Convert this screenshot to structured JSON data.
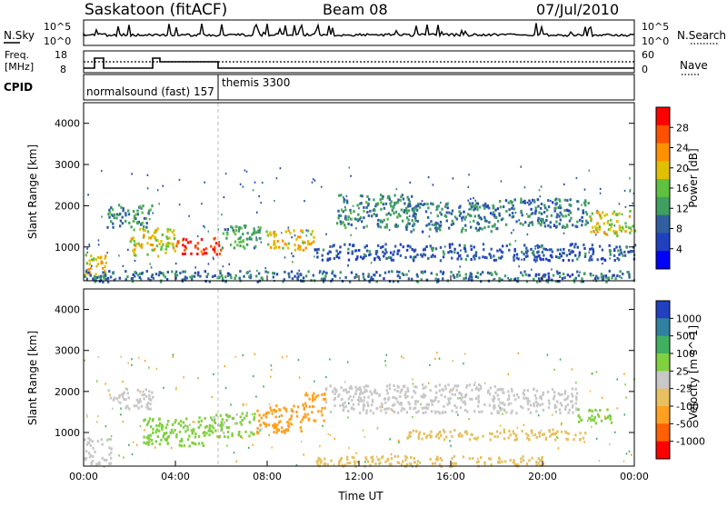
{
  "header": {
    "station": "Saskatoon (fitACF)",
    "beam": "Beam 08",
    "date": "07/Jul/2010"
  },
  "side_labels": {
    "nsky": "N.Sky",
    "nsearch": "N.Search",
    "freq_line1": "Freq.",
    "freq_line2": "[MHz]",
    "nave": "Nave",
    "cpid": "CPID"
  },
  "noise_axis": {
    "left_top": "10^5",
    "left_bottom": "10^0",
    "right_top": "10^5",
    "right_bottom": "10^0"
  },
  "freq_axis": {
    "left_top": "18",
    "left_bottom": "8",
    "right_top": "60",
    "right_bottom": "0"
  },
  "cpid": {
    "mode1": "normalsound (fast) 157",
    "mode2": "themis 3300"
  },
  "colorbars": {
    "power": {
      "label": "Power [dB]",
      "ticks": [
        "28",
        "24",
        "20",
        "16",
        "12",
        "8",
        "4"
      ],
      "colors": [
        "#0000ff",
        "#2040c0",
        "#3060a0",
        "#40a060",
        "#60c040",
        "#e0c000",
        "#ff9000",
        "#ff5000",
        "#ff0000"
      ]
    },
    "velocity": {
      "label": "Velocity [m s^-1]",
      "ticks": [
        "1000",
        "500",
        "100",
        "25",
        "-25",
        "-100",
        "-500",
        "-1000"
      ],
      "colors": [
        "#2040c0",
        "#3080a0",
        "#40b060",
        "#80d040",
        "#c8c8c8",
        "#e8c060",
        "#ffa020",
        "#ff6000",
        "#ff0000"
      ]
    }
  },
  "chart_data": [
    {
      "type": "heatmap",
      "title": "Power",
      "ylabel": "Slant Range [km]",
      "xlabel": "Time UT",
      "x_ticks": [
        "00:00",
        "04:00",
        "08:00",
        "12:00",
        "16:00",
        "20:00",
        "00:00"
      ],
      "y_ticks": [
        1000,
        2000,
        3000,
        4000
      ],
      "ylim": [
        180,
        4500
      ],
      "xlim_hours": [
        0,
        24
      ],
      "regions": [
        {
          "t0": 0.0,
          "t1": 1.0,
          "r0": 350,
          "r1": 900,
          "value": 20
        },
        {
          "t0": 1.0,
          "t1": 3.0,
          "r0": 1500,
          "r1": 2050,
          "value": 10
        },
        {
          "t0": 2.0,
          "t1": 4.0,
          "r0": 800,
          "r1": 1500,
          "value": 18
        },
        {
          "t0": 4.0,
          "t1": 6.0,
          "r0": 850,
          "r1": 1250,
          "value": 28
        },
        {
          "t0": 6.0,
          "t1": 8.0,
          "r0": 1000,
          "r1": 1550,
          "value": 12
        },
        {
          "t0": 8.0,
          "t1": 10.0,
          "r0": 950,
          "r1": 1450,
          "value": 20
        },
        {
          "t0": 11.0,
          "t1": 14.5,
          "r0": 1500,
          "r1": 2300,
          "value": 10
        },
        {
          "t0": 14.0,
          "t1": 18.0,
          "r0": 1400,
          "r1": 2100,
          "value": 9
        },
        {
          "t0": 18.0,
          "t1": 22.0,
          "r0": 1500,
          "r1": 2200,
          "value": 9
        },
        {
          "t0": 22.0,
          "t1": 24.0,
          "r0": 1300,
          "r1": 1900,
          "value": 18
        },
        {
          "t0": 10.0,
          "t1": 24.0,
          "r0": 700,
          "r1": 1100,
          "value": 6
        },
        {
          "t0": 0.0,
          "t1": 24.0,
          "r0": 180,
          "r1": 450,
          "value": 8
        }
      ]
    },
    {
      "type": "heatmap",
      "title": "Velocity",
      "ylabel": "Slant Range [km]",
      "xlabel": "Time UT",
      "x_ticks": [
        "00:00",
        "04:00",
        "08:00",
        "12:00",
        "16:00",
        "20:00",
        "00:00"
      ],
      "y_ticks": [
        1000,
        2000,
        3000,
        4000
      ],
      "ylim": [
        180,
        4500
      ],
      "xlim_hours": [
        0,
        24
      ],
      "regions": [
        {
          "t0": 0.0,
          "t1": 1.2,
          "r0": 250,
          "r1": 900,
          "value": 0
        },
        {
          "t0": 1.0,
          "t1": 3.0,
          "r0": 1600,
          "r1": 2100,
          "value": 0
        },
        {
          "t0": 2.5,
          "t1": 5.5,
          "r0": 700,
          "r1": 1400,
          "value": 60
        },
        {
          "t0": 5.5,
          "t1": 7.5,
          "r0": 900,
          "r1": 1500,
          "value": 40
        },
        {
          "t0": 7.5,
          "t1": 9.5,
          "r0": 1000,
          "r1": 1700,
          "value": -300
        },
        {
          "t0": 9.5,
          "t1": 10.5,
          "r0": 1300,
          "r1": 2000,
          "value": -300
        },
        {
          "t0": 10.5,
          "t1": 18.0,
          "r0": 1500,
          "r1": 2200,
          "value": 0
        },
        {
          "t0": 18.0,
          "t1": 21.5,
          "r0": 1500,
          "r1": 2100,
          "value": 0
        },
        {
          "t0": 21.5,
          "t1": 23.0,
          "r0": 1250,
          "r1": 1600,
          "value": 60
        },
        {
          "t0": 10.0,
          "t1": 20.0,
          "r0": 200,
          "r1": 450,
          "value": -60
        },
        {
          "t0": 14.0,
          "t1": 22.0,
          "r0": 850,
          "r1": 1100,
          "value": -60
        }
      ]
    }
  ],
  "axis_labels": {
    "xlabel": "Time UT",
    "ylabel": "Slant Range [km]"
  }
}
